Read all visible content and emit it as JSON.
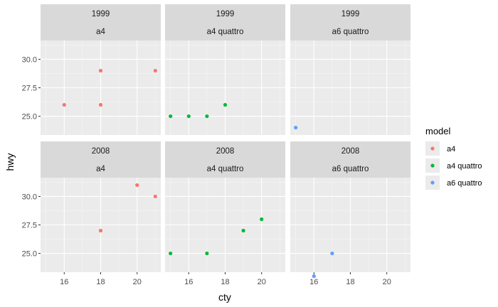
{
  "chart_data": {
    "type": "scatter",
    "xlabel": "cty",
    "ylabel": "hwy",
    "xlim": [
      14.7,
      21.3
    ],
    "ylim": [
      23.35,
      31.65
    ],
    "x_ticks": [
      16,
      18,
      20
    ],
    "y_ticks": [
      25,
      27.5,
      30
    ],
    "x_tick_labels": [
      "16",
      "18",
      "20"
    ],
    "y_tick_labels": [
      "25.0",
      "27.5",
      "30.0"
    ],
    "legend": {
      "title": "model",
      "placement": "right",
      "entries": [
        {
          "name": "a4",
          "color": "#F8766D"
        },
        {
          "name": "a4 quattro",
          "color": "#00BA38"
        },
        {
          "name": "a6 quattro",
          "color": "#619CFF"
        }
      ]
    },
    "panels": [
      {
        "year": "1999",
        "model": "a4",
        "color": "#F8766D",
        "points": [
          {
            "x": 16,
            "y": 26
          },
          {
            "x": 18,
            "y": 26
          },
          {
            "x": 18,
            "y": 29
          },
          {
            "x": 21,
            "y": 29
          }
        ]
      },
      {
        "year": "1999",
        "model": "a4 quattro",
        "color": "#00BA38",
        "points": [
          {
            "x": 15,
            "y": 25
          },
          {
            "x": 16,
            "y": 25
          },
          {
            "x": 17,
            "y": 25
          },
          {
            "x": 18,
            "y": 26
          }
        ]
      },
      {
        "year": "1999",
        "model": "a6 quattro",
        "color": "#619CFF",
        "points": [
          {
            "x": 15,
            "y": 24
          }
        ]
      },
      {
        "year": "2008",
        "model": "a4",
        "color": "#F8766D",
        "points": [
          {
            "x": 18,
            "y": 27
          },
          {
            "x": 20,
            "y": 31
          },
          {
            "x": 21,
            "y": 30
          }
        ]
      },
      {
        "year": "2008",
        "model": "a4 quattro",
        "color": "#00BA38",
        "points": [
          {
            "x": 15,
            "y": 25
          },
          {
            "x": 17,
            "y": 25
          },
          {
            "x": 19,
            "y": 27
          },
          {
            "x": 20,
            "y": 28
          }
        ]
      },
      {
        "year": "2008",
        "model": "a6 quattro",
        "color": "#619CFF",
        "points": [
          {
            "x": 16,
            "y": 23
          },
          {
            "x": 17,
            "y": 25
          }
        ]
      }
    ]
  }
}
